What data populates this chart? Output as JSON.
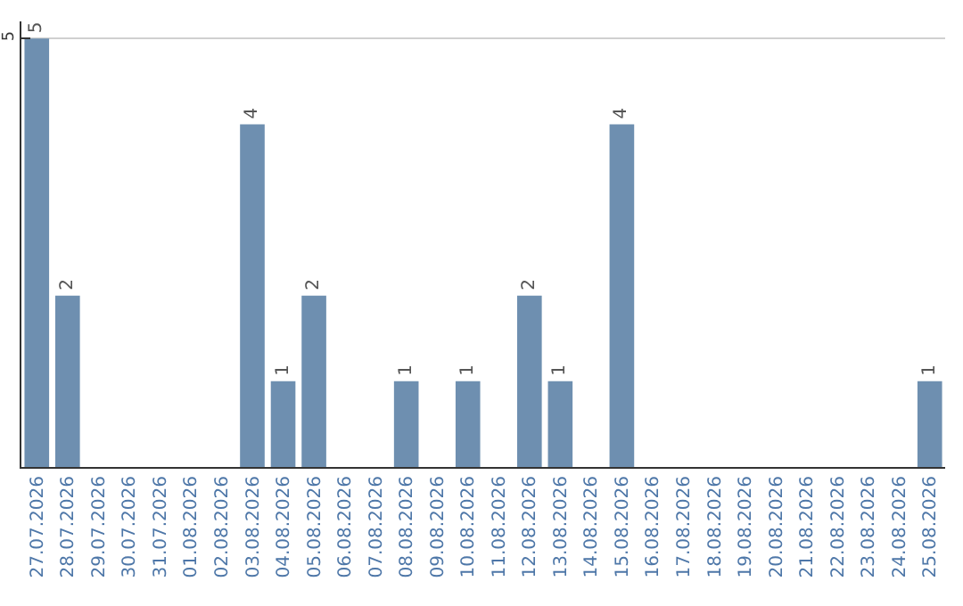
{
  "chart_data": {
    "type": "bar",
    "categories": [
      "27.07.2026",
      "28.07.2026",
      "29.07.2026",
      "30.07.2026",
      "31.07.2026",
      "01.08.2026",
      "02.08.2026",
      "03.08.2026",
      "04.08.2026",
      "05.08.2026",
      "06.08.2026",
      "07.08.2026",
      "08.08.2026",
      "09.08.2026",
      "10.08.2026",
      "11.08.2026",
      "12.08.2026",
      "13.08.2026",
      "14.08.2026",
      "15.08.2026",
      "16.08.2026",
      "17.08.2026",
      "18.08.2026",
      "19.08.2026",
      "20.08.2026",
      "21.08.2026",
      "22.08.2026",
      "23.08.2026",
      "24.08.2026",
      "25.08.2026"
    ],
    "values": [
      5,
      2,
      null,
      null,
      null,
      null,
      null,
      4,
      1,
      2,
      null,
      null,
      1,
      null,
      1,
      null,
      2,
      1,
      null,
      4,
      null,
      null,
      null,
      null,
      null,
      null,
      null,
      null,
      null,
      1
    ],
    "color": "#6e8fb0",
    "ylim": [
      0,
      5.2
    ],
    "yticks": [
      5
    ],
    "grid": "y",
    "data_labels": true
  }
}
